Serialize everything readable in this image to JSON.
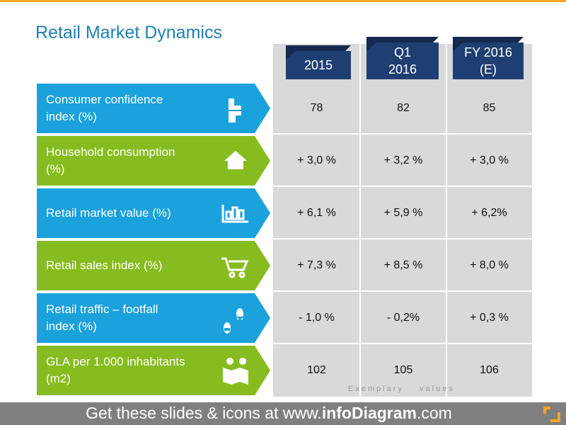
{
  "header": {
    "title": "Retail Market Dynamics"
  },
  "table": {
    "columns": [
      "2015",
      "Q1\n2016",
      "FY 2016\n(E)"
    ],
    "rows": [
      {
        "label": "Consumer confidence\nindex (%)",
        "values": [
          "78",
          "82",
          "85"
        ]
      },
      {
        "label": "Household consumption\n(%)",
        "values": [
          "+ 3,0 %",
          "+ 3,2 %",
          "+ 3,0 %"
        ]
      },
      {
        "label": "Retail market value (%)",
        "values": [
          "+ 6,1 %",
          "+ 5,9 %",
          "+ 6,2%"
        ]
      },
      {
        "label": "Retail sales index (%)",
        "values": [
          "+ 7,3 %",
          "+ 8,5 %",
          "+ 8,0 %"
        ]
      },
      {
        "label": "Retail traffic – footfall\nindex (%)",
        "values": [
          "- 1,0 %",
          "- 0,2%",
          "+ 0,3 %"
        ]
      },
      {
        "label": "GLA per 1.000 inhabitants\n(m2)",
        "values": [
          "102",
          "105",
          "106"
        ]
      }
    ],
    "note": "Exemplary values"
  },
  "footer": {
    "prefix": "Get these slides & icons at www.",
    "brand": "infoDiagram",
    "suffix": ".com"
  }
}
